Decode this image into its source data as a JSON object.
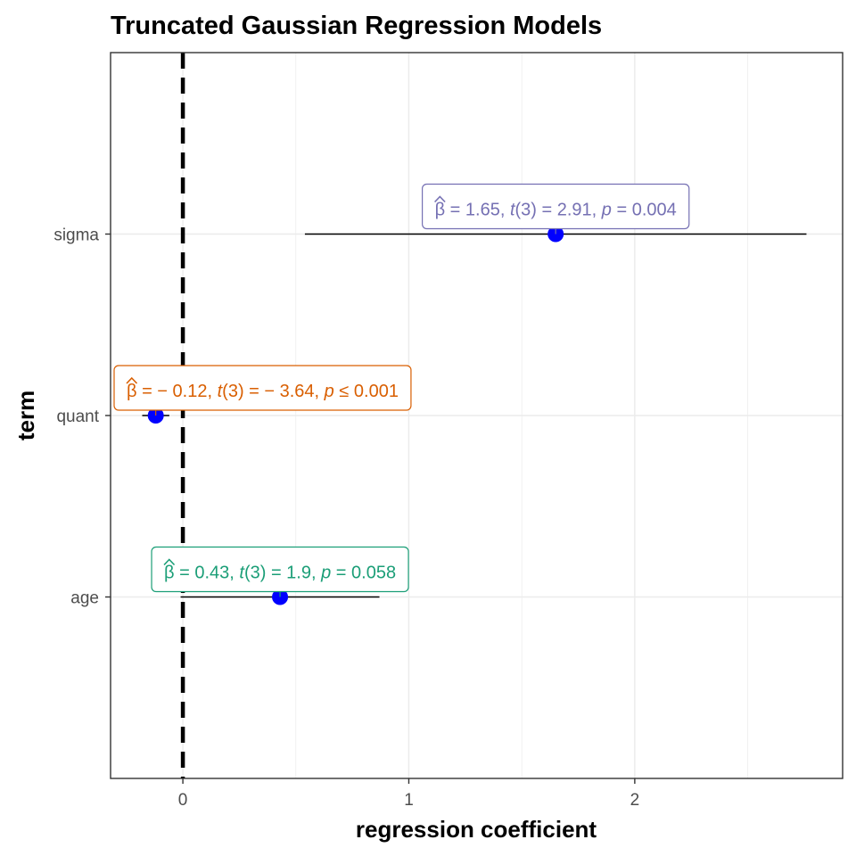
{
  "chart_data": {
    "type": "scatter",
    "title": "Truncated Gaussian Regression Models",
    "xlabel": "regression coefficient",
    "ylabel": "term",
    "xlim": [
      -0.32,
      2.92
    ],
    "x_ticks": [
      "0",
      "1",
      "2"
    ],
    "x_tick_values": [
      0,
      1,
      2
    ],
    "reference_line": 0,
    "grid": true,
    "point_color": "#0000ff",
    "terms": [
      {
        "term": "age",
        "estimate": 0.43,
        "ci_low": -0.01,
        "ci_high": 0.87,
        "color": "#1b9e77",
        "label": {
          "pre": "= 0.43,  ",
          "t": "t",
          "mid": "(3) = 1.9,  ",
          "p": "p",
          "post": " = 0.058"
        }
      },
      {
        "term": "quant",
        "estimate": -0.12,
        "ci_low": -0.18,
        "ci_high": -0.06,
        "color": "#d95f02",
        "label": {
          "pre": "= − 0.12,  ",
          "t": "t",
          "mid": "(3) = − 3.64,  ",
          "p": "p",
          "post": " ≤ 0.001"
        }
      },
      {
        "term": "sigma",
        "estimate": 1.65,
        "ci_low": 0.54,
        "ci_high": 2.76,
        "color": "#7570b3",
        "label": {
          "pre": "= 1.65,  ",
          "t": "t",
          "mid": "(3) = 2.91,  ",
          "p": "p",
          "post": " = 0.004"
        }
      }
    ]
  }
}
